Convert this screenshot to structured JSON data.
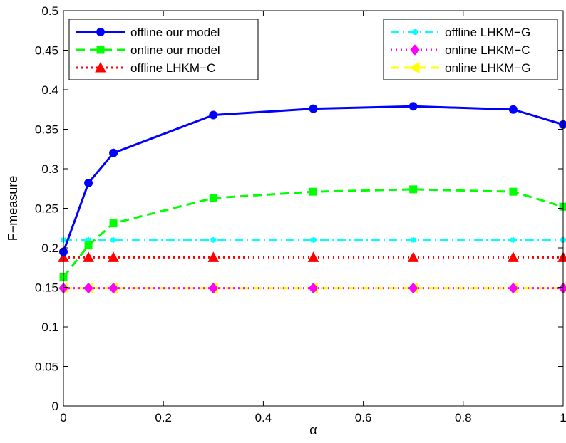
{
  "chart_data": {
    "type": "line",
    "xlabel": "α",
    "ylabel": "F−measure",
    "xlim": [
      0,
      1
    ],
    "ylim": [
      0,
      0.5
    ],
    "grid": false,
    "x_ticks": [
      "0",
      "0.2",
      "0.4",
      "0.6",
      "0.8",
      "1"
    ],
    "x_tick_values": [
      0,
      0.2,
      0.4,
      0.6,
      0.8,
      1
    ],
    "y_ticks": [
      "0",
      "0.05",
      "0.1",
      "0.15",
      "0.2",
      "0.25",
      "0.3",
      "0.35",
      "0.4",
      "0.45",
      "0.5"
    ],
    "y_tick_values": [
      0,
      0.05,
      0.1,
      0.15,
      0.2,
      0.25,
      0.3,
      0.35,
      0.4,
      0.45,
      0.5
    ],
    "x": [
      0,
      0.05,
      0.1,
      0.3,
      0.5,
      0.7,
      0.9,
      1
    ],
    "legends": [
      {
        "placement": "top-left",
        "series": [
          0,
          1,
          2
        ]
      },
      {
        "placement": "top-right",
        "series": [
          3,
          4,
          5
        ]
      }
    ],
    "series": [
      {
        "name": "offline our model",
        "color": "#0000ff",
        "dash": "solid",
        "marker": "circle",
        "values": [
          0.195,
          0.282,
          0.32,
          0.368,
          0.376,
          0.379,
          0.375,
          0.356
        ]
      },
      {
        "name": "online our model",
        "color": "#00ff00",
        "dash": "dashed",
        "marker": "square",
        "values": [
          0.163,
          0.203,
          0.231,
          0.263,
          0.271,
          0.274,
          0.271,
          0.252
        ]
      },
      {
        "name": "offline LHKM−C",
        "color": "#ff0000",
        "dash": "dotted",
        "marker": "triangle-up",
        "values": [
          0.188,
          0.188,
          0.188,
          0.188,
          0.188,
          0.188,
          0.188,
          0.188
        ]
      },
      {
        "name": "offline LHKM−G",
        "color": "#00ffff",
        "dash": "dashdot",
        "marker": "asterisk",
        "values": [
          0.21,
          0.21,
          0.21,
          0.21,
          0.21,
          0.21,
          0.21,
          0.21
        ]
      },
      {
        "name": "online LHKM−C",
        "color": "#ff00ff",
        "dash": "dotted",
        "marker": "diamond",
        "values": [
          0.149,
          0.149,
          0.149,
          0.149,
          0.149,
          0.149,
          0.149,
          0.149
        ]
      },
      {
        "name": "online LHKM−G",
        "color": "#ffff00",
        "dash": "dashed",
        "marker": "triangle-left",
        "values": [
          0.149,
          0.149,
          0.149,
          0.149,
          0.149,
          0.149,
          0.149,
          0.149
        ]
      }
    ]
  }
}
